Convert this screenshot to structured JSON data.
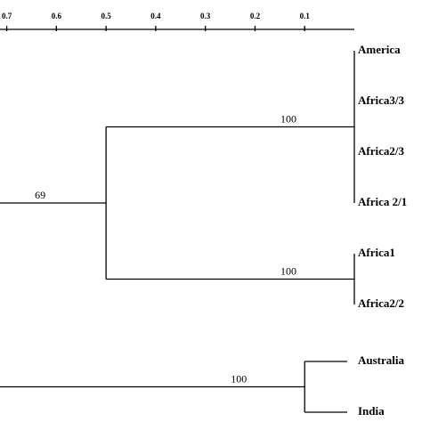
{
  "chart_data": {
    "type": "dendrogram",
    "xlim": [
      0.71,
      0
    ],
    "xticks": [
      0.7,
      0.6,
      0.5,
      0.4,
      0.3,
      0.2,
      0.1
    ],
    "clusters": [
      {
        "support": 69,
        "height": 0.5,
        "children": [
          {
            "support": 100,
            "height": 0,
            "leaves": [
              "America",
              "Africa3/3",
              "Africa2/3",
              "Africa 2/1"
            ]
          },
          {
            "support": 100,
            "height": 0,
            "leaves": [
              "Africa1",
              "Africa2/2"
            ]
          }
        ]
      },
      {
        "support": 100,
        "height": 0.1,
        "leaves": [
          "Australia",
          "India"
        ]
      }
    ]
  }
}
